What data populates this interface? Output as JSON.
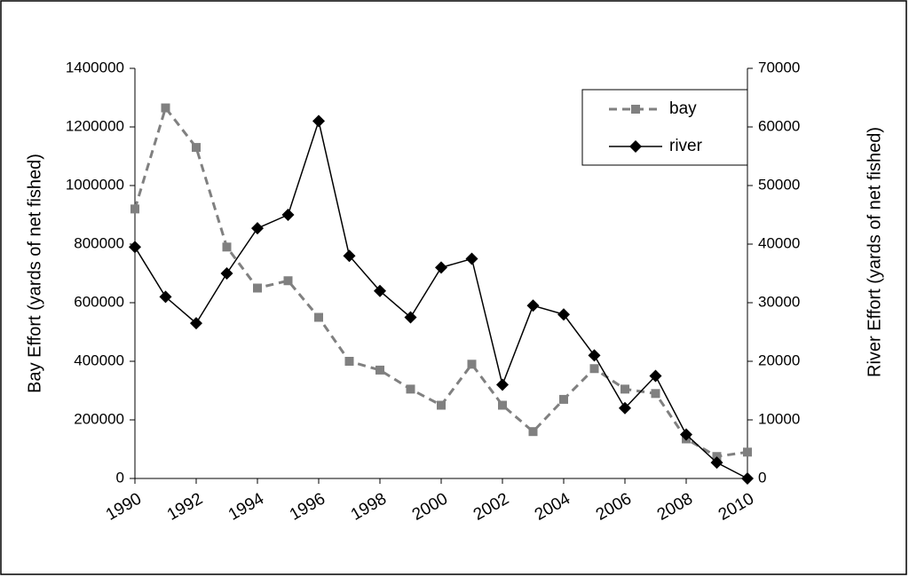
{
  "chart_data": {
    "type": "line",
    "x": [
      1990,
      1991,
      1992,
      1993,
      1994,
      1995,
      1996,
      1997,
      1998,
      1999,
      2000,
      2001,
      2002,
      2003,
      2004,
      2005,
      2006,
      2007,
      2008,
      2009,
      2010
    ],
    "xlim": [
      1990,
      2010
    ],
    "xticks": [
      1990,
      1992,
      1994,
      1996,
      1998,
      2000,
      2002,
      2004,
      2006,
      2008,
      2010
    ],
    "ylim": [
      0,
      1400000
    ],
    "yticks": [
      0,
      200000,
      400000,
      600000,
      800000,
      1000000,
      1200000,
      1400000
    ],
    "y2lim": [
      0,
      70000
    ],
    "y2ticks": [
      0,
      10000,
      20000,
      30000,
      40000,
      50000,
      60000,
      70000
    ],
    "ylabel": "Bay Effort (yards of net fished)",
    "y2label": "River Effort (yards of net fished)",
    "legend": "upper right",
    "series": [
      {
        "name": "bay",
        "color": "#808080",
        "dashed": true,
        "marker": "square",
        "axis": "y",
        "values": [
          920000,
          1265000,
          1130000,
          790000,
          650000,
          675000,
          550000,
          400000,
          370000,
          305000,
          250000,
          390000,
          250000,
          160000,
          270000,
          375000,
          305000,
          290000,
          135000,
          75000,
          90000
        ]
      },
      {
        "name": "river",
        "color": "#000000",
        "dashed": false,
        "marker": "diamond",
        "axis": "y2",
        "values": [
          39500,
          31000,
          26500,
          35000,
          42700,
          45000,
          61000,
          38000,
          32000,
          27500,
          36000,
          37500,
          16000,
          29500,
          28000,
          21000,
          12000,
          17500,
          7500,
          2700,
          0
        ]
      }
    ]
  }
}
